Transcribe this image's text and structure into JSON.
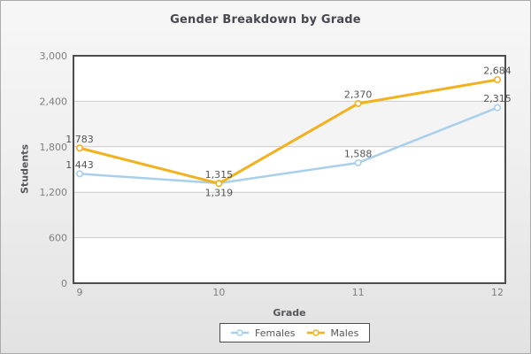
{
  "title": "Gender Breakdown by Grade",
  "axes": {
    "x_title": "Grade",
    "y_title": "Students",
    "x_tick_labels": [
      "9",
      "10",
      "11",
      "12"
    ],
    "y_tick_labels": [
      "0",
      "600",
      "1,200",
      "1,800",
      "2,400",
      "3,000"
    ]
  },
  "legend": {
    "position": "bottom-center",
    "items": [
      {
        "label": "Females",
        "color": "#A8CFEC"
      },
      {
        "label": "Males",
        "color": "#F2B11F"
      }
    ]
  },
  "colors": {
    "background_top": "#F7F7F7",
    "background_bottom": "#E2E2E2",
    "plot_background": "#FFFFFF",
    "plot_band": "#F4F4F4",
    "plot_border": "#4D4D4D",
    "gridline": "#CCCCCC",
    "title_text": "#47474F",
    "axis_title_text": "#55555C",
    "tick_text": "#7F7F7F",
    "data_label_text": "#555555",
    "marker_fill": "#FFFFFF"
  },
  "chart_data": {
    "type": "line",
    "title": "Gender Breakdown by Grade",
    "xlabel": "Grade",
    "ylabel": "Students",
    "categories": [
      "9",
      "10",
      "11",
      "12"
    ],
    "series": [
      {
        "name": "Females",
        "color": "#A8CFEC",
        "values": [
          1443,
          1319,
          1588,
          2315
        ],
        "labels": [
          "1,443",
          "1,319",
          "1,588",
          "2,315"
        ],
        "label_positions": [
          "above",
          "below",
          "above",
          "above"
        ]
      },
      {
        "name": "Males",
        "color": "#F2B11F",
        "values": [
          1783,
          1315,
          2370,
          2684
        ],
        "labels": [
          "1,783",
          "1,315",
          "2,370",
          "2,684"
        ],
        "label_positions": [
          "above",
          "above",
          "above",
          "above"
        ]
      }
    ],
    "ylim": [
      0,
      3000
    ],
    "ytick_step": 600,
    "grid": "horizontal",
    "plot_bands": "alternating-horizontal",
    "marker": "open-circle",
    "legend_position": "bottom"
  }
}
